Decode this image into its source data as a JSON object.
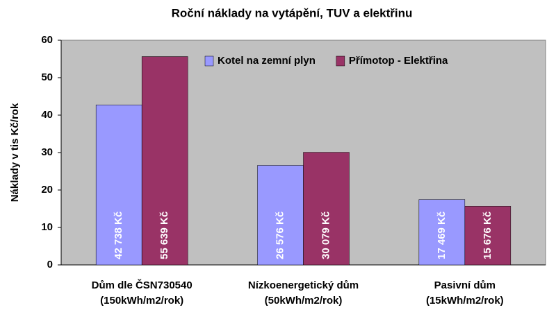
{
  "chart_data": {
    "type": "bar",
    "title": "Roční náklady na vytápění, TUV a elektřinu",
    "y_label": "Náklady v tis Kč/rok",
    "categories": [
      "Dům dle ČSN730540\n(150kWh/m2/rok)",
      "Nízkoenergetický dům\n(50kWh/m2/rok)",
      "Pasivní dům\n(15kWh/m2/rok)"
    ],
    "series": [
      {
        "name": "Kotel na zemní plyn",
        "color": "#9999ff",
        "values": [
          42.738,
          26.576,
          17.469
        ],
        "value_labels": [
          "42 738 Kč",
          "26 576 Kč",
          "17 469 Kč"
        ]
      },
      {
        "name": "Přímotop - Elektřina",
        "color": "#993366",
        "values": [
          55.639,
          30.079,
          15.676
        ],
        "value_labels": [
          "55 639 Kč",
          "30 079 Kč",
          "15 676 Kč"
        ]
      }
    ],
    "ylim": [
      0,
      60
    ],
    "yticks": [
      0,
      10,
      20,
      30,
      40,
      50,
      60
    ],
    "grid": false,
    "legend": "top-right"
  }
}
